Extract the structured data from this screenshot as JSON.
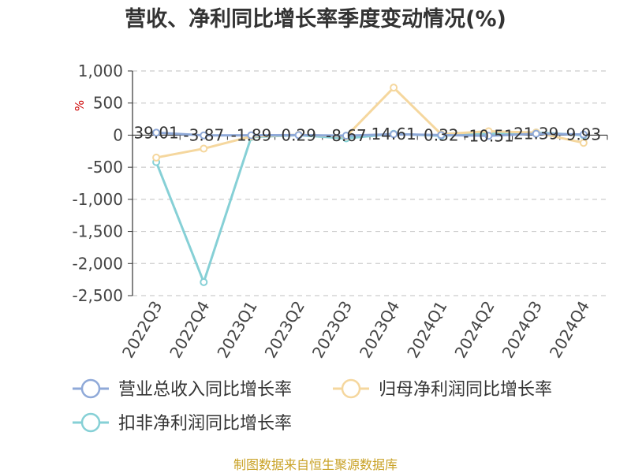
{
  "chart_data": {
    "type": "line",
    "title": "营收、净利同比增长率季度变动情况(%)",
    "ylabel": "%",
    "categories": [
      "2022Q3",
      "2022Q4",
      "2023Q1",
      "2023Q2",
      "2023Q3",
      "2023Q4",
      "2024Q1",
      "2024Q2",
      "2024Q3",
      "2024Q4"
    ],
    "ylim": [
      -2500,
      1000
    ],
    "yticks": [
      1000,
      500,
      0,
      -500,
      -1000,
      -1500,
      -2000,
      -2500
    ],
    "ytick_labels": [
      "1,000",
      "500",
      "0",
      "-500",
      "-1,000",
      "-1,500",
      "-2,000",
      "-2,500"
    ],
    "grid": true,
    "legend_position": "bottom",
    "series": [
      {
        "name": "营业总收入同比增长率",
        "color": "#8fa9d8",
        "values": [
          39.01,
          -3.87,
          -1.89,
          0.29,
          -8.67,
          14.61,
          0.32,
          -10.51,
          21.39,
          9.93
        ],
        "data_labels": [
          "39.01",
          "-3.87",
          "-1.89",
          "0.29",
          "-8.67",
          "14.61",
          "0.32",
          "-10.51",
          "21.39",
          "9.93"
        ]
      },
      {
        "name": "归母净利润同比增长率",
        "color": "#f5d79e",
        "values": [
          -350,
          -210,
          -20,
          5,
          -20,
          740,
          15,
          60,
          40,
          -120
        ]
      },
      {
        "name": "扣非净利润同比增长率",
        "color": "#86d0d6",
        "values": [
          -420,
          -2290,
          -30,
          0,
          -50,
          20,
          -10,
          20,
          40,
          0
        ]
      }
    ]
  },
  "footer": {
    "source": "制图数据来自恒生聚源数据库"
  }
}
